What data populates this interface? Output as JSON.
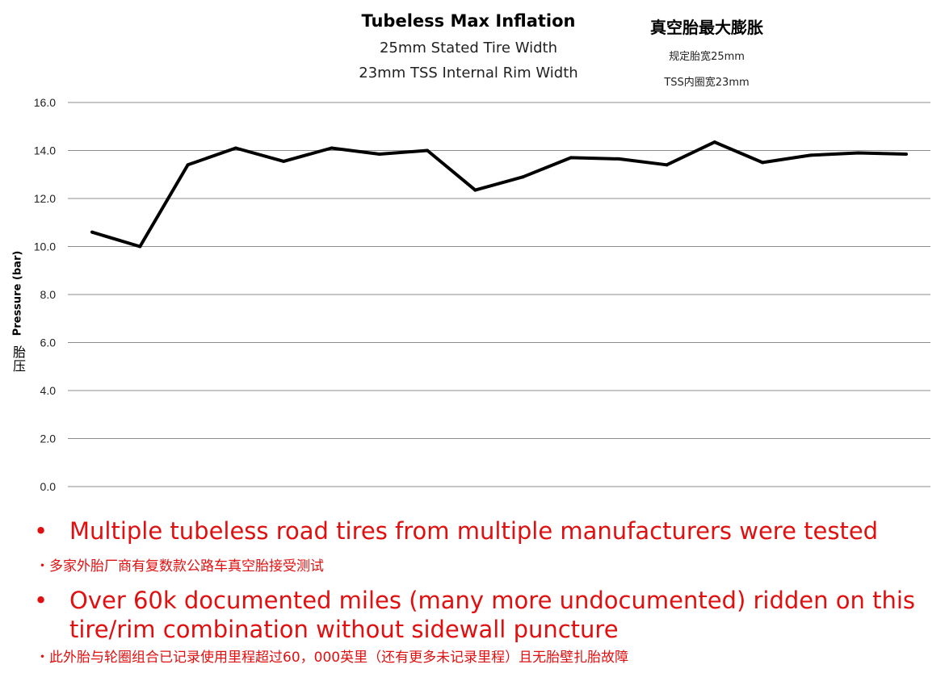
{
  "chart_data": {
    "type": "line",
    "title": "Tubeless Max Inflation",
    "subtitle_lines": [
      "25mm Stated Tire Width",
      "23mm TSS Internal Rim Width"
    ],
    "title_cn": "真空胎最大膨胀",
    "subtitle_cn_lines": [
      "规定胎宽25mm",
      "TSS内圈宽23mm"
    ],
    "ylabel": "Pressure (bar)",
    "ylabel_cn": "胎压",
    "ylim": [
      0,
      16
    ],
    "yticks": [
      "0.0",
      "2.0",
      "4.0",
      "6.0",
      "8.0",
      "10.0",
      "12.0",
      "14.0",
      "16.0"
    ],
    "grid": true,
    "line_color": "#000000",
    "series": [
      {
        "values": [
          10.6,
          10.0,
          13.4,
          14.1,
          13.55,
          14.1,
          13.85,
          14.0,
          12.35,
          12.9,
          13.7,
          13.65,
          13.4,
          14.35,
          13.5,
          13.8,
          13.9,
          13.85
        ]
      }
    ]
  },
  "notes": {
    "line1_en": "Multiple tubeless road tires from multiple manufacturers were tested",
    "line1_cn": "・多家外胎厂商有复数款公路车真空胎接受测试",
    "line2_en": "Over 60k documented miles (many more undocumented) ridden on this tire/rim combination without sidewall puncture",
    "line2_cn": "・此外胎与轮圈组合已记录使用里程超过60，000英里（还有更多未记录里程）且无胎壁扎胎故障",
    "bullet": "•",
    "text_color": "#e01010"
  }
}
